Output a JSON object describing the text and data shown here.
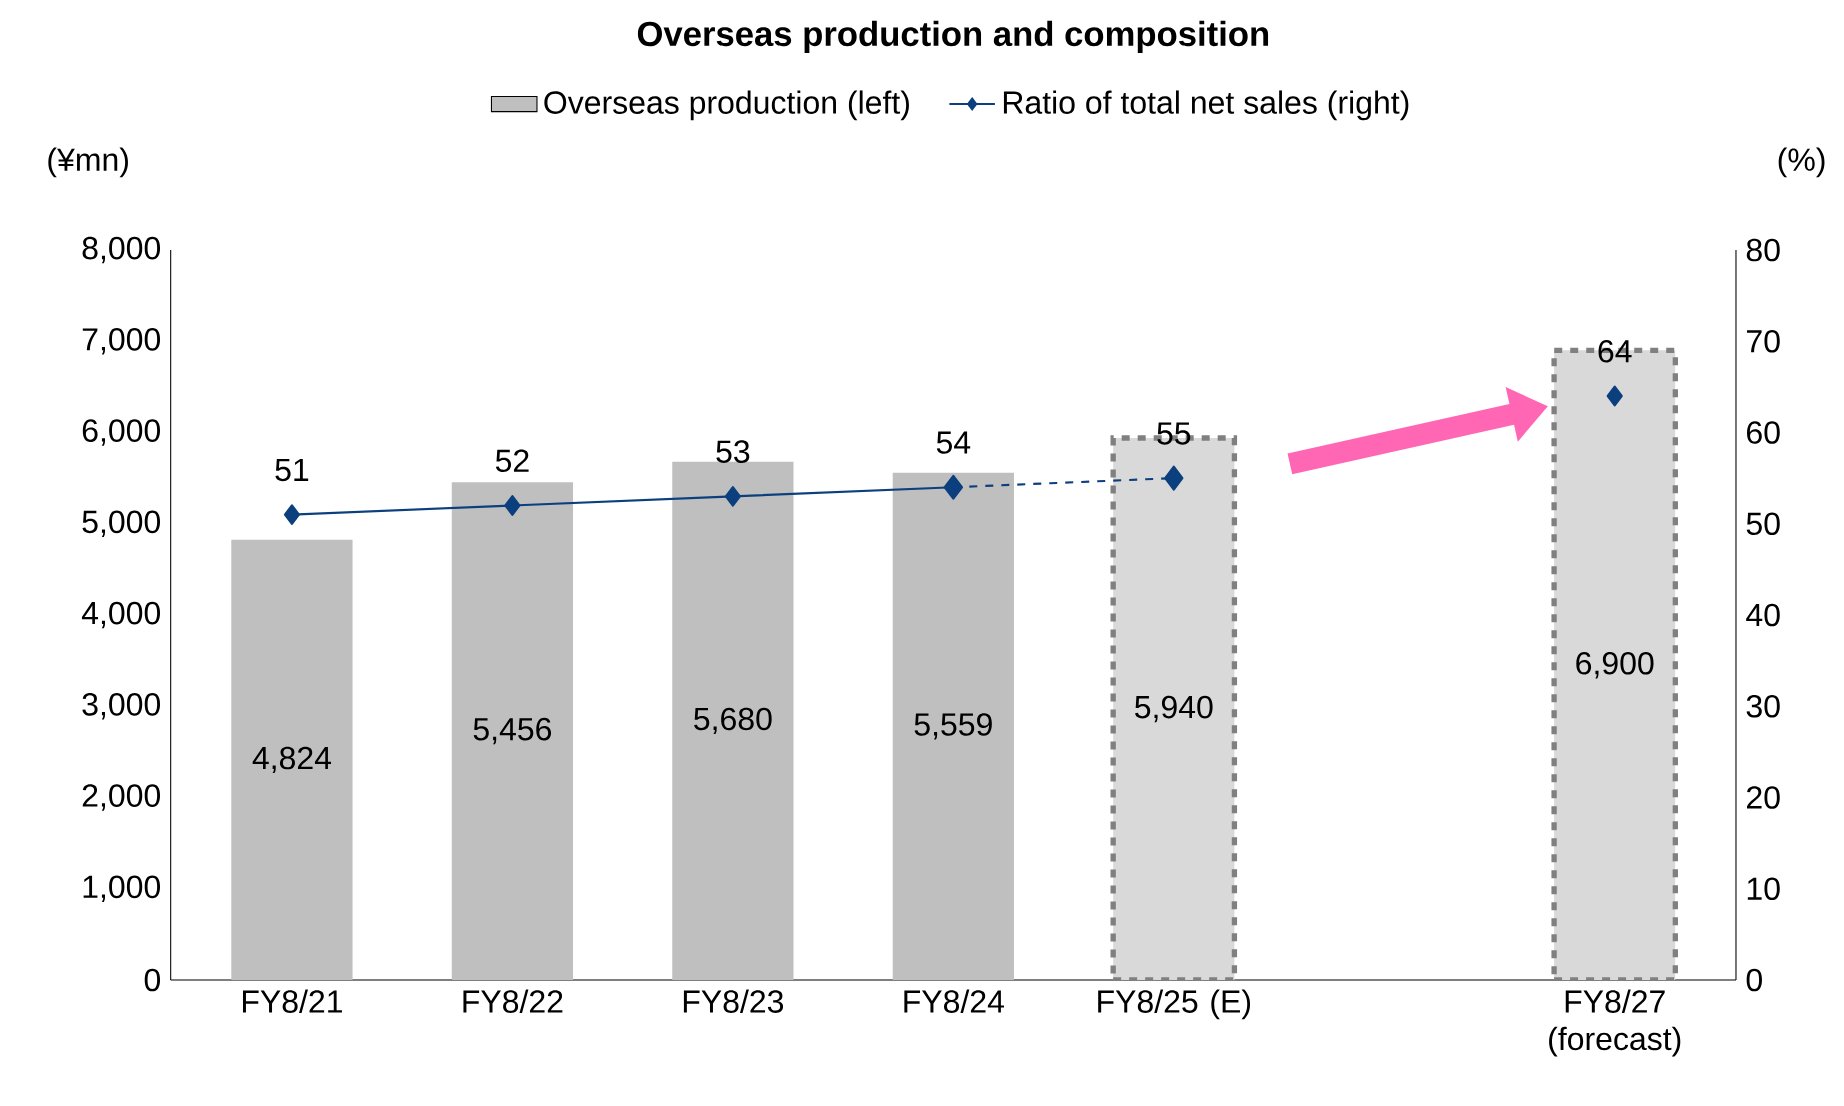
{
  "chart_data": {
    "type": "bar",
    "title": "Overseas production and composition",
    "categories": [
      "FY8/21",
      "FY8/22",
      "FY8/23",
      "FY8/24",
      "FY8/25 (E)",
      null,
      "FY8/27 (forecast)"
    ],
    "series": [
      {
        "name": "Overseas production (left)",
        "color": "#bfbfbf",
        "values": [
          4824,
          5456,
          5680,
          5559,
          null,
          null,
          null
        ],
        "value_labels": [
          "4,824",
          "5,456",
          "5,680",
          "5,559",
          null,
          null,
          null
        ]
      },
      {
        "color": "#d9d9d9",
        "line_style": "dashed",
        "values": [
          null,
          null,
          null,
          null,
          5940,
          null,
          6900
        ],
        "value_labels": [
          null,
          null,
          null,
          null,
          "5,940",
          null,
          "6,900"
        ]
      },
      {
        "name": "Ratio of total net sales (right)",
        "type": "line",
        "axis": "y2",
        "color": "#0b3f7e",
        "marker": "diamond",
        "line_style": "solid",
        "data_labels": true,
        "values": [
          51,
          52,
          53,
          54,
          null,
          null,
          64
        ]
      },
      {
        "type": "line",
        "axis": "y2",
        "color": "#0b3f7e",
        "marker": "diamond",
        "line_style": "dashed",
        "values": [
          null,
          null,
          null,
          54,
          55,
          null,
          null
        ],
        "value_labels": [
          null,
          null,
          null,
          null,
          "55",
          null,
          null
        ]
      }
    ],
    "ylabel": "(¥mn)",
    "y2label": "(%)",
    "ylim": [
      0,
      8000
    ],
    "yticks": [
      0,
      {
        "value": 1000,
        "label": "1,000"
      },
      {
        "value": 2000,
        "label": "2,000"
      },
      {
        "value": 3000,
        "label": "3,000"
      },
      {
        "value": 4000,
        "label": "4,000"
      },
      {
        "value": 5000,
        "label": "5,000"
      },
      {
        "value": 6000,
        "label": "6,000"
      },
      {
        "value": 7000,
        "label": "7,000"
      },
      {
        "value": 8000,
        "label": "8,000"
      }
    ],
    "y2lim": [
      0,
      80
    ],
    "y2ticks": [
      0,
      10,
      20,
      30,
      40,
      50,
      60,
      70,
      80
    ],
    "legend": "top"
  }
}
